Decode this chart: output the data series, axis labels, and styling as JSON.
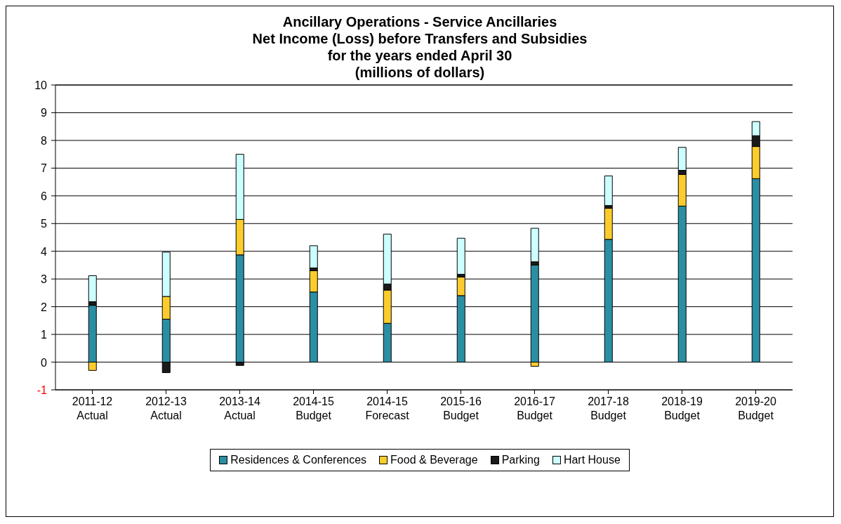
{
  "chart_data": {
    "type": "bar",
    "title": "Ancillary Operations - Service Ancillaries\nNet Income (Loss) before Transfers and Subsidies\nfor the years ended April 30\n(millions of dollars)",
    "categories": [
      "2011-12\nActual",
      "2012-13\nActual",
      "2013-14\nActual",
      "2014-15\nBudget",
      "2014-15\nForecast",
      "2015-16\nBudget",
      "2016-17\nBudget",
      "2017-18\nBudget",
      "2018-19\nBudget",
      "2019-20\nBudget"
    ],
    "stacked": true,
    "series": [
      {
        "name": "Residences & Conferences",
        "color": "#2b8fa3",
        "values": [
          2.05,
          1.55,
          3.87,
          2.53,
          1.4,
          2.4,
          3.5,
          4.43,
          5.63,
          6.62
        ]
      },
      {
        "name": "Food & Beverage",
        "color": "#fccc2d",
        "values": [
          -0.3,
          0.82,
          1.28,
          0.77,
          1.2,
          0.67,
          -0.15,
          1.12,
          1.14,
          1.16
        ]
      },
      {
        "name": "Parking",
        "color": "#1a1a1a",
        "values": [
          0.13,
          -0.38,
          -0.12,
          0.1,
          0.22,
          0.1,
          0.12,
          0.1,
          0.15,
          0.39
        ]
      },
      {
        "name": "Hart House",
        "color": "#ccffff",
        "values": [
          0.94,
          1.6,
          2.35,
          0.8,
          1.8,
          1.3,
          1.21,
          1.07,
          0.83,
          0.51
        ]
      }
    ],
    "ylim": [
      -1,
      10
    ],
    "yticks": [
      -1,
      0,
      1,
      2,
      3,
      4,
      5,
      6,
      7,
      8,
      9,
      10
    ],
    "grid": "y",
    "legend": "bottom"
  }
}
